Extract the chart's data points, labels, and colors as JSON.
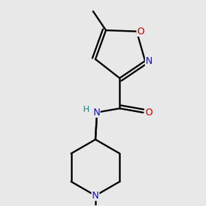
{
  "bg_color": "#e8e8e8",
  "line_color": "#000000",
  "bond_width": 1.8,
  "atom_colors": {
    "N": "#1010cc",
    "O": "#cc0000",
    "H": "#008888",
    "C": "#000000"
  },
  "font_size": 10,
  "small_font_size": 9,
  "figsize": [
    3.0,
    3.0
  ],
  "dpi": 100
}
